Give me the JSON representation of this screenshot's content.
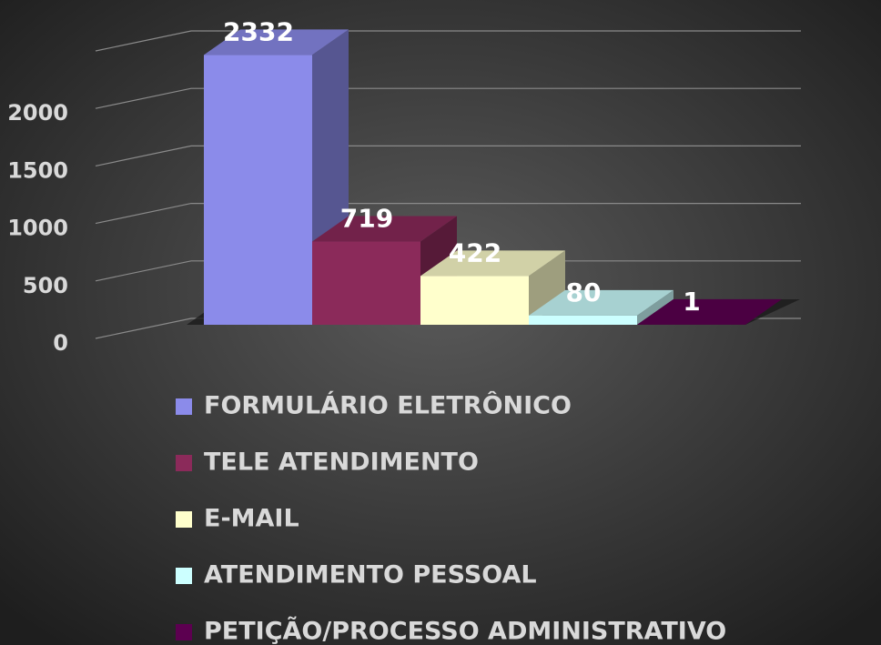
{
  "chart_data": {
    "type": "bar",
    "categories": [
      null
    ],
    "series": [
      {
        "name": "FORMULÁRIO ELETRÔNICO",
        "color": "#8b8bea",
        "values": [
          2332
        ]
      },
      {
        "name": "TELE ATENDIMENTO",
        "color": "#8b2a5a",
        "values": [
          719
        ]
      },
      {
        "name": "E-MAIL",
        "color": "#ffffcc",
        "values": [
          422
        ]
      },
      {
        "name": "ATENDIMENTO PESSOAL",
        "color": "#ccffff",
        "values": [
          80
        ]
      },
      {
        "name": "PETIÇÃO/PROCESSO ADMINISTRATIVO",
        "color": "#5c0050",
        "values": [
          1
        ]
      }
    ],
    "ylim": [
      0,
      2500
    ],
    "yticks": [
      0,
      500,
      1000,
      1500,
      2000
    ],
    "grid": true,
    "legend": "bottom"
  }
}
